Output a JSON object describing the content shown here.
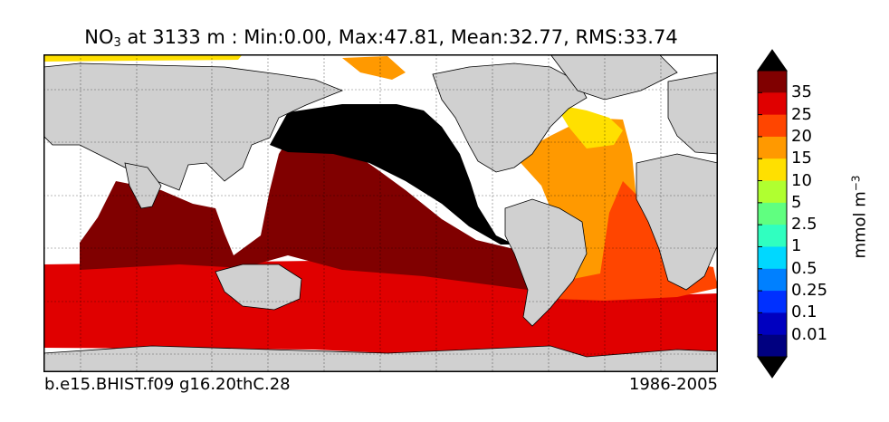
{
  "title": {
    "variable_base": "NO",
    "variable_subscript": "3",
    "rest": " at 3133 m : Min:0.00, Max:47.81, Mean:32.77, RMS:33.74"
  },
  "footer": {
    "case_name": "b.e15.BHIST.f09 g16.20thC.28",
    "years": "1986-2005"
  },
  "colorbar": {
    "units_base": "mmol m",
    "units_exponent": "−3",
    "labels": [
      "35",
      "25",
      "20",
      "15",
      "10",
      "5",
      "2.5",
      "1",
      "0.5",
      "0.25",
      "0.1",
      "0.01"
    ],
    "colors_top_to_bottom": [
      "#800000",
      "#e00000",
      "#ff4500",
      "#ff9900",
      "#ffe000",
      "#b0ff30",
      "#60ff80",
      "#30ffc0",
      "#00d8ff",
      "#0080ff",
      "#0030ff",
      "#0000c0",
      "#000080"
    ],
    "top_arrow_color": "#000000",
    "bottom_arrow_color": "#000000"
  },
  "map": {
    "land_color": "#d0d0d0",
    "missing_color": "#ffffff"
  }
}
